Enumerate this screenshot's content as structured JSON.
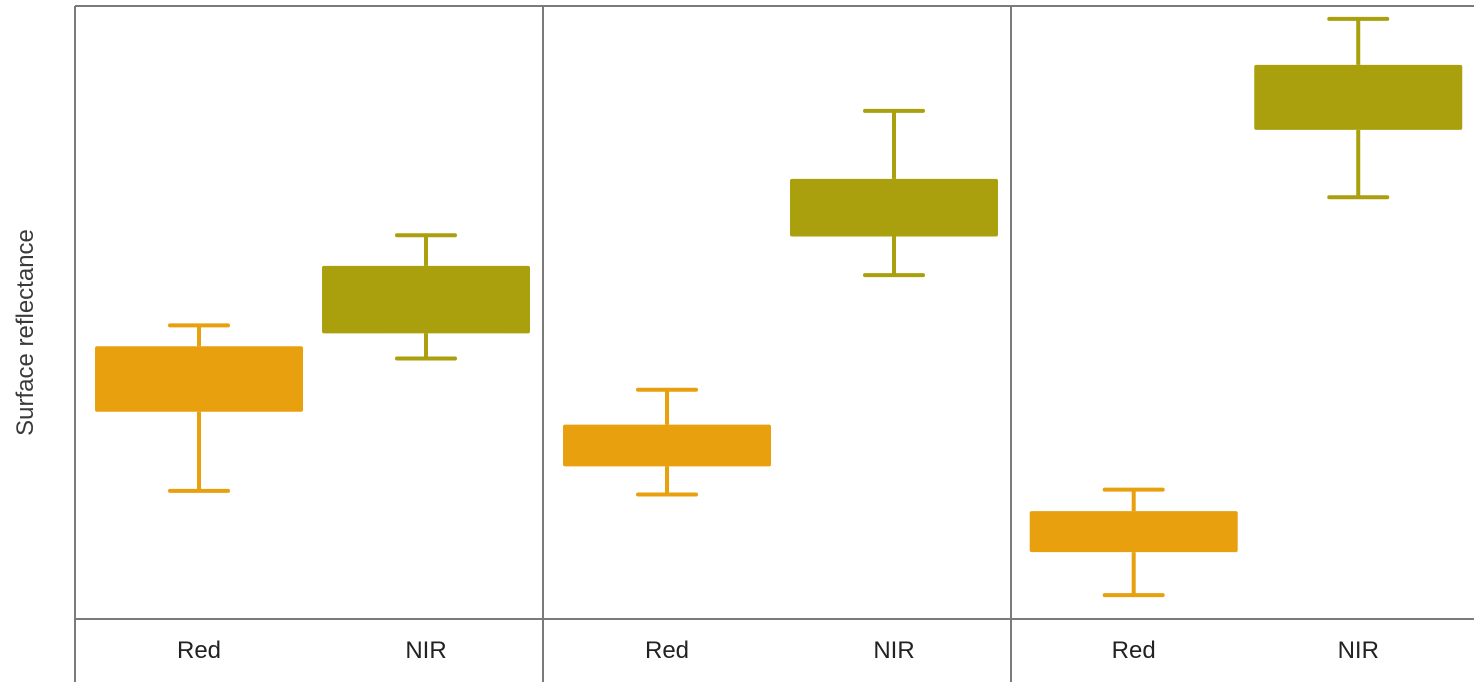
{
  "chart_data": {
    "type": "box",
    "ylabel": "Surface reflectance",
    "y_tick_labels": false,
    "ylim": [
      0,
      100
    ],
    "grid": false,
    "legend": "none",
    "colors": {
      "Red": "#E8A00E",
      "NIR": "#AAA00D",
      "axis": "#7a7a7a",
      "text": "#222222"
    },
    "panels": [
      {
        "categories": [
          "Red",
          "NIR"
        ],
        "boxes": [
          {
            "category": "Red",
            "whisker_low": 20.9,
            "q1": 33.8,
            "q3": 44.5,
            "whisker_high": 47.9
          },
          {
            "category": "NIR",
            "whisker_low": 42.5,
            "q1": 46.6,
            "q3": 57.6,
            "whisker_high": 62.6
          }
        ]
      },
      {
        "categories": [
          "Red",
          "NIR"
        ],
        "boxes": [
          {
            "category": "Red",
            "whisker_low": 20.3,
            "q1": 24.9,
            "q3": 31.7,
            "whisker_high": 37.4
          },
          {
            "category": "NIR",
            "whisker_low": 56.1,
            "q1": 62.4,
            "q3": 71.8,
            "whisker_high": 82.9
          }
        ]
      },
      {
        "categories": [
          "Red",
          "NIR"
        ],
        "boxes": [
          {
            "category": "Red",
            "whisker_low": 3.9,
            "q1": 10.9,
            "q3": 17.6,
            "whisker_high": 21.1
          },
          {
            "category": "NIR",
            "whisker_low": 68.8,
            "q1": 79.8,
            "q3": 90.4,
            "whisker_high": 97.9
          }
        ]
      }
    ]
  }
}
